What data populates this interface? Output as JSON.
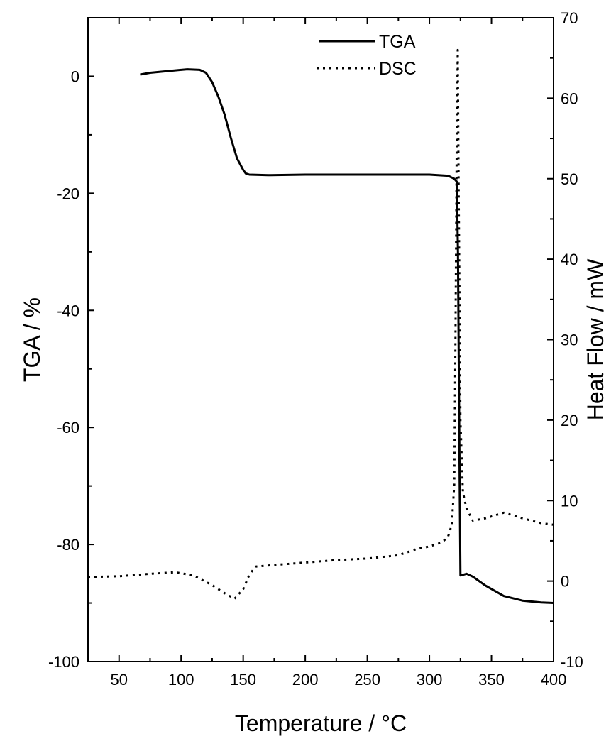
{
  "chart_data": {
    "type": "line",
    "title": "",
    "xlabel": "Temperature / °C",
    "ylabel_left": "TGA / %",
    "ylabel_right": "Heat Flow / mW",
    "xlim": [
      25,
      400
    ],
    "ylim_left": [
      -100,
      10
    ],
    "ylim_right": [
      -10,
      70
    ],
    "x_ticks": [
      50,
      100,
      150,
      200,
      250,
      300,
      350,
      400
    ],
    "y_left_ticks": [
      0,
      -20,
      -40,
      -60,
      -80,
      -100
    ],
    "y_right_ticks": [
      -10,
      0,
      10,
      20,
      30,
      40,
      50,
      60,
      70
    ],
    "grid": false,
    "legend": "top-center",
    "series": [
      {
        "name": "TGA",
        "axis": "left",
        "style": "solid",
        "color": "#000000",
        "points": [
          [
            67,
            0.3
          ],
          [
            75,
            0.6
          ],
          [
            90,
            0.9
          ],
          [
            105,
            1.2
          ],
          [
            115,
            1.1
          ],
          [
            120,
            0.6
          ],
          [
            125,
            -1.0
          ],
          [
            130,
            -3.5
          ],
          [
            135,
            -6.5
          ],
          [
            140,
            -10.5
          ],
          [
            145,
            -14.0
          ],
          [
            150,
            -16.0
          ],
          [
            152,
            -16.6
          ],
          [
            155,
            -16.8
          ],
          [
            170,
            -16.9
          ],
          [
            200,
            -16.8
          ],
          [
            250,
            -16.8
          ],
          [
            300,
            -16.8
          ],
          [
            315,
            -17.0
          ],
          [
            320,
            -17.5
          ],
          [
            322,
            -18.0
          ],
          [
            323,
            -30.0
          ],
          [
            324,
            -60.0
          ],
          [
            325,
            -85.3
          ],
          [
            330,
            -85.0
          ],
          [
            335,
            -85.5
          ],
          [
            345,
            -87.0
          ],
          [
            360,
            -88.8
          ],
          [
            375,
            -89.6
          ],
          [
            390,
            -89.9
          ],
          [
            400,
            -90.0
          ]
        ]
      },
      {
        "name": "DSC",
        "axis": "right",
        "style": "dotted",
        "color": "#000000",
        "points": [
          [
            25,
            0.5
          ],
          [
            50,
            0.6
          ],
          [
            75,
            0.9
          ],
          [
            95,
            1.1
          ],
          [
            110,
            0.7
          ],
          [
            125,
            -0.5
          ],
          [
            135,
            -1.5
          ],
          [
            143,
            -2.2
          ],
          [
            150,
            -1.0
          ],
          [
            155,
            0.8
          ],
          [
            160,
            1.8
          ],
          [
            175,
            2.0
          ],
          [
            200,
            2.3
          ],
          [
            225,
            2.6
          ],
          [
            250,
            2.8
          ],
          [
            275,
            3.2
          ],
          [
            290,
            4.0
          ],
          [
            300,
            4.3
          ],
          [
            310,
            4.8
          ],
          [
            315,
            5.5
          ],
          [
            318,
            7.0
          ],
          [
            320,
            12.0
          ],
          [
            321,
            30.0
          ],
          [
            322,
            55.0
          ],
          [
            322.8,
            66.0
          ],
          [
            323.5,
            50.0
          ],
          [
            325,
            20.0
          ],
          [
            327,
            11.0
          ],
          [
            330,
            9.0
          ],
          [
            335,
            7.5
          ],
          [
            345,
            7.8
          ],
          [
            360,
            8.5
          ],
          [
            375,
            7.8
          ],
          [
            390,
            7.2
          ],
          [
            400,
            7.0
          ]
        ]
      }
    ]
  }
}
